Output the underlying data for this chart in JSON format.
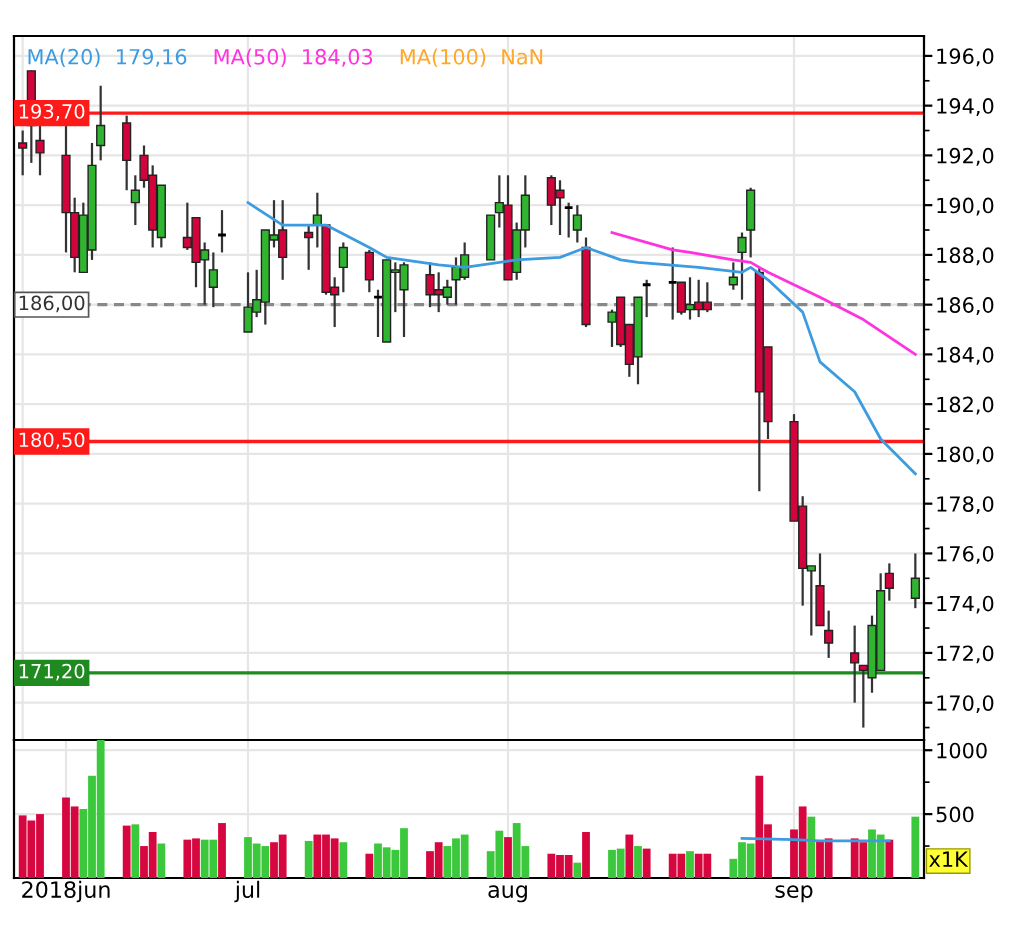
{
  "chart_data": [
    {
      "type": "candlestick",
      "x": [
        "2018-06-06",
        "2018-06-07",
        "2018-06-08",
        "2018-06-11",
        "2018-06-12",
        "2018-06-13",
        "2018-06-14",
        "2018-06-15",
        "2018-06-18",
        "2018-06-19",
        "2018-06-20",
        "2018-06-21",
        "2018-06-22",
        "2018-06-25",
        "2018-06-26",
        "2018-06-27",
        "2018-06-28",
        "2018-06-29",
        "2018-07-02",
        "2018-07-03",
        "2018-07-04",
        "2018-07-05",
        "2018-07-06",
        "2018-07-09",
        "2018-07-10",
        "2018-07-11",
        "2018-07-12",
        "2018-07-13",
        "2018-07-16",
        "2018-07-17",
        "2018-07-18",
        "2018-07-19",
        "2018-07-20",
        "2018-07-23",
        "2018-07-24",
        "2018-07-25",
        "2018-07-26",
        "2018-07-27",
        "2018-07-30",
        "2018-07-31",
        "2018-08-01",
        "2018-08-02",
        "2018-08-03",
        "2018-08-06",
        "2018-08-07",
        "2018-08-08",
        "2018-08-09",
        "2018-08-10",
        "2018-08-13",
        "2018-08-14",
        "2018-08-15",
        "2018-08-16",
        "2018-08-17",
        "2018-08-20",
        "2018-08-21",
        "2018-08-22",
        "2018-08-23",
        "2018-08-24",
        "2018-08-27",
        "2018-08-28",
        "2018-08-29",
        "2018-08-30",
        "2018-08-31",
        "2018-09-03",
        "2018-09-04",
        "2018-09-05",
        "2018-09-06",
        "2018-09-07",
        "2018-09-10",
        "2018-09-11",
        "2018-09-12",
        "2018-09-13",
        "2018-09-14",
        "2018-09-17"
      ],
      "ohlc": [
        [
          192.5,
          193.0,
          191.2,
          192.3
        ],
        [
          195.4,
          195.4,
          191.7,
          193.2
        ],
        [
          192.6,
          193.2,
          191.2,
          192.1
        ],
        [
          192.0,
          193.2,
          188.1,
          189.7
        ],
        [
          189.7,
          190.3,
          187.3,
          187.9
        ],
        [
          187.3,
          190.1,
          187.3,
          189.6
        ],
        [
          188.2,
          192.5,
          187.8,
          191.6
        ],
        [
          192.4,
          194.8,
          191.8,
          193.2
        ],
        [
          193.3,
          193.6,
          190.6,
          191.8
        ],
        [
          190.1,
          191.2,
          189.2,
          190.6
        ],
        [
          192.0,
          192.4,
          190.7,
          191.0
        ],
        [
          191.2,
          191.6,
          188.3,
          189.0
        ],
        [
          188.7,
          190.8,
          188.3,
          190.8
        ],
        [
          188.7,
          190.1,
          188.2,
          188.3
        ],
        [
          189.5,
          189.5,
          186.7,
          187.7
        ],
        [
          187.8,
          188.5,
          186.0,
          188.2
        ],
        [
          186.7,
          188.1,
          185.9,
          187.4
        ],
        [
          188.8,
          189.8,
          188.1,
          188.8
        ],
        [
          184.9,
          187.3,
          184.9,
          185.9
        ],
        [
          185.7,
          187.4,
          185.5,
          186.2
        ],
        [
          186.1,
          189.0,
          185.2,
          189.0
        ],
        [
          188.6,
          190.2,
          188.3,
          188.8
        ],
        [
          189.0,
          190.2,
          187.0,
          187.9
        ],
        [
          188.9,
          189.2,
          187.4,
          188.7
        ],
        [
          189.2,
          190.5,
          188.3,
          189.6
        ],
        [
          189.2,
          189.2,
          186.4,
          186.5
        ],
        [
          186.7,
          187.1,
          185.1,
          186.4
        ],
        [
          187.5,
          188.5,
          186.5,
          188.3
        ],
        [
          188.1,
          188.2,
          186.5,
          187.0
        ],
        [
          186.3,
          186.6,
          184.7,
          186.3
        ],
        [
          184.5,
          187.8,
          184.5,
          187.8
        ],
        [
          187.3,
          187.7,
          185.7,
          187.4
        ],
        [
          186.6,
          187.7,
          184.7,
          187.6
        ],
        [
          187.2,
          187.7,
          185.9,
          186.4
        ],
        [
          186.6,
          187.3,
          185.7,
          186.4
        ],
        [
          186.3,
          187.0,
          186.0,
          186.7
        ],
        [
          187.0,
          187.9,
          186.0,
          187.5
        ],
        [
          187.1,
          188.5,
          187.0,
          188.0
        ],
        [
          187.8,
          189.6,
          187.8,
          189.6
        ],
        [
          189.7,
          191.2,
          189.1,
          190.1
        ],
        [
          190.0,
          191.2,
          187.0,
          187.0
        ],
        [
          187.3,
          189.3,
          187.0,
          189.0
        ],
        [
          189.0,
          191.2,
          188.3,
          190.4
        ],
        [
          191.1,
          191.2,
          189.2,
          190.0
        ],
        [
          190.6,
          191.0,
          188.8,
          190.3
        ],
        [
          189.9,
          190.1,
          188.7,
          189.9
        ],
        [
          189.0,
          190.0,
          188.5,
          189.6
        ],
        [
          188.3,
          188.7,
          185.1,
          185.2
        ],
        [
          185.3,
          185.8,
          184.3,
          185.7
        ],
        [
          186.3,
          186.3,
          184.3,
          184.4
        ],
        [
          185.2,
          185.2,
          183.1,
          183.6
        ],
        [
          183.9,
          186.3,
          182.8,
          186.3
        ],
        [
          186.8,
          187.0,
          185.5,
          186.8
        ],
        [
          186.9,
          188.3,
          185.4,
          186.9
        ],
        [
          186.9,
          186.9,
          185.6,
          185.7
        ],
        [
          185.8,
          187.1,
          185.4,
          186.0
        ],
        [
          186.1,
          187.0,
          185.5,
          185.8
        ],
        [
          186.1,
          186.9,
          185.7,
          185.8
        ],
        [
          186.8,
          187.7,
          186.6,
          187.1
        ],
        [
          188.1,
          188.9,
          186.2,
          188.7
        ],
        [
          189.0,
          190.7,
          187.9,
          190.6
        ],
        [
          187.3,
          187.5,
          178.5,
          182.5
        ],
        [
          184.3,
          184.3,
          180.6,
          181.3
        ],
        [
          181.3,
          181.6,
          177.3,
          177.3
        ],
        [
          177.9,
          178.3,
          173.9,
          175.4
        ],
        [
          175.3,
          175.5,
          172.7,
          175.5
        ],
        [
          174.7,
          176.0,
          173.1,
          173.1
        ],
        [
          172.9,
          173.7,
          171.8,
          172.4
        ],
        [
          172.0,
          173.1,
          170.0,
          171.6
        ],
        [
          171.5,
          171.5,
          169.0,
          171.3
        ],
        [
          171.0,
          173.5,
          170.4,
          173.1
        ],
        [
          171.3,
          175.2,
          171.3,
          174.5
        ],
        [
          175.2,
          175.6,
          174.1,
          174.6
        ],
        [
          174.2,
          176.0,
          173.8,
          175.0
        ]
      ],
      "colors": [
        "#d2043c",
        "#d2043c",
        "#d2043c",
        "#d2043c",
        "#d2043c",
        "#2fb52f",
        "#2fb52f",
        "#2fb52f",
        "#d2043c",
        "#2fb52f",
        "#d2043c",
        "#d2043c",
        "#2fb52f",
        "#d2043c",
        "#d2043c",
        "#2fb52f",
        "#2fb52f",
        "#000000",
        "#2fb52f",
        "#2fb52f",
        "#2fb52f",
        "#2fb52f",
        "#d2043c",
        "#d2043c",
        "#2fb52f",
        "#d2043c",
        "#d2043c",
        "#2fb52f",
        "#d2043c",
        "#000000",
        "#2fb52f",
        "#2fb52f",
        "#2fb52f",
        "#d2043c",
        "#d2043c",
        "#2fb52f",
        "#2fb52f",
        "#2fb52f",
        "#2fb52f",
        "#2fb52f",
        "#d2043c",
        "#2fb52f",
        "#2fb52f",
        "#d2043c",
        "#d2043c",
        "#000000",
        "#2fb52f",
        "#d2043c",
        "#2fb52f",
        "#d2043c",
        "#d2043c",
        "#2fb52f",
        "#000000",
        "#000000",
        "#d2043c",
        "#2fb52f",
        "#d2043c",
        "#d2043c",
        "#2fb52f",
        "#2fb52f",
        "#2fb52f",
        "#d2043c",
        "#d2043c",
        "#d2043c",
        "#d2043c",
        "#2fb52f",
        "#d2043c",
        "#d2043c",
        "#d2043c",
        "#d2043c",
        "#2fb52f",
        "#2fb52f",
        "#d2043c",
        "#2fb52f"
      ],
      "series": [
        {
          "type": "line",
          "name": "MA(20)  179,16",
          "color": "#3d9be0",
          "x": [
            "2018-07-02",
            "2018-07-06",
            "2018-07-11",
            "2018-07-16",
            "2018-07-18",
            "2018-07-24",
            "2018-07-27",
            "2018-08-02",
            "2018-08-07",
            "2018-08-10",
            "2018-08-14",
            "2018-08-16",
            "2018-08-23",
            "2018-08-28",
            "2018-08-29",
            "2018-08-31",
            "2018-09-04",
            "2018-09-06",
            "2018-09-10",
            "2018-09-13",
            "2018-09-17"
          ],
          "values": [
            190.1,
            189.2,
            189.2,
            188.3,
            187.9,
            187.6,
            187.5,
            187.8,
            187.9,
            188.3,
            187.8,
            187.7,
            187.5,
            187.3,
            187.5,
            187.0,
            185.7,
            183.7,
            182.5,
            180.6,
            179.2
          ]
        },
        {
          "type": "line",
          "name": "MA(50)  184,03",
          "color": "#ff33dd",
          "x": [
            "2018-08-13",
            "2018-08-20",
            "2018-08-22",
            "2018-08-27",
            "2018-08-29",
            "2018-08-31",
            "2018-09-06",
            "2018-09-11",
            "2018-09-17"
          ],
          "values": [
            188.9,
            188.2,
            188.1,
            187.8,
            187.7,
            187.3,
            186.3,
            185.4,
            184.0
          ]
        },
        {
          "type": "line",
          "name": "MA(100)  NaN",
          "color": "#ffa726",
          "values": [
            null,
            null,
            null,
            null,
            null,
            null,
            null,
            null,
            null,
            null,
            null,
            null,
            null,
            null,
            null,
            null,
            null,
            null,
            null,
            null,
            null,
            null,
            null,
            null,
            null,
            null,
            null,
            null,
            null,
            null,
            null,
            null,
            null,
            null,
            null,
            null,
            null,
            null,
            null,
            null,
            null,
            null,
            null,
            null,
            null,
            null,
            null,
            null,
            null,
            null,
            null,
            null,
            null,
            null,
            null,
            null,
            null,
            null,
            null,
            null,
            null,
            null,
            null,
            null,
            null,
            null,
            null,
            null,
            null,
            null,
            null,
            null,
            null,
            null
          ]
        }
      ],
      "ref_lines": [
        {
          "axis": "y",
          "value": 193.7,
          "label": "193,70",
          "color": "#ff1a1a",
          "line_style": "solid"
        },
        {
          "axis": "y",
          "value": 186.0,
          "label": "186,00",
          "color": "#888888",
          "line_style": "dashed"
        },
        {
          "axis": "y",
          "value": 180.5,
          "label": "180,50",
          "color": "#ff1a1a",
          "line_style": "solid"
        },
        {
          "axis": "y",
          "value": 171.2,
          "label": "171,20",
          "color": "#1f8a1f",
          "line_style": "solid"
        }
      ],
      "xlim": [
        "2018-06-05",
        "2018-09-18"
      ],
      "ylim": [
        168.5,
        196.8
      ],
      "yticks": [
        {
          "value": 170,
          "label": "170,0"
        },
        {
          "value": 172,
          "label": "172,0"
        },
        {
          "value": 174,
          "label": "174,0"
        },
        {
          "value": 176,
          "label": "176,0"
        },
        {
          "value": 178,
          "label": "178,0"
        },
        {
          "value": 180,
          "label": "180,0"
        },
        {
          "value": 182,
          "label": "182,0"
        },
        {
          "value": 184,
          "label": "184,0"
        },
        {
          "value": 186,
          "label": "186,0"
        },
        {
          "value": 188,
          "label": "188,0"
        },
        {
          "value": 190,
          "label": "190,0"
        },
        {
          "value": 192,
          "label": "192,0"
        },
        {
          "value": 194,
          "label": "194,0"
        },
        {
          "value": 196,
          "label": "196,0"
        }
      ],
      "xticks": [
        {
          "value": "2018-06-06",
          "label": null
        },
        {
          "value": "2018-07-02",
          "label": null
        },
        {
          "value": "2018-08-01",
          "label": null
        },
        {
          "value": "2018-09-03",
          "label": null
        }
      ],
      "tick_labels": "y",
      "grid": true,
      "legend": "top left"
    },
    {
      "type": "bar",
      "x": [
        "2018-06-06",
        "2018-06-07",
        "2018-06-08",
        "2018-06-11",
        "2018-06-12",
        "2018-06-13",
        "2018-06-14",
        "2018-06-15",
        "2018-06-18",
        "2018-06-19",
        "2018-06-20",
        "2018-06-21",
        "2018-06-22",
        "2018-06-25",
        "2018-06-26",
        "2018-06-27",
        "2018-06-28",
        "2018-06-29",
        "2018-07-02",
        "2018-07-03",
        "2018-07-04",
        "2018-07-05",
        "2018-07-06",
        "2018-07-09",
        "2018-07-10",
        "2018-07-11",
        "2018-07-12",
        "2018-07-13",
        "2018-07-16",
        "2018-07-17",
        "2018-07-18",
        "2018-07-19",
        "2018-07-20",
        "2018-07-23",
        "2018-07-24",
        "2018-07-25",
        "2018-07-26",
        "2018-07-27",
        "2018-07-30",
        "2018-07-31",
        "2018-08-01",
        "2018-08-02",
        "2018-08-03",
        "2018-08-06",
        "2018-08-07",
        "2018-08-08",
        "2018-08-09",
        "2018-08-10",
        "2018-08-13",
        "2018-08-14",
        "2018-08-15",
        "2018-08-16",
        "2018-08-17",
        "2018-08-20",
        "2018-08-21",
        "2018-08-22",
        "2018-08-23",
        "2018-08-24",
        "2018-08-27",
        "2018-08-28",
        "2018-08-29",
        "2018-08-30",
        "2018-08-31",
        "2018-09-03",
        "2018-09-04",
        "2018-09-05",
        "2018-09-06",
        "2018-09-07",
        "2018-09-10",
        "2018-09-11",
        "2018-09-12",
        "2018-09-13",
        "2018-09-14",
        "2018-09-17"
      ],
      "values": [
        490,
        450,
        500,
        630,
        560,
        540,
        800,
        1080,
        410,
        420,
        250,
        360,
        270,
        300,
        310,
        300,
        300,
        430,
        320,
        270,
        250,
        280,
        340,
        290,
        340,
        340,
        310,
        280,
        190,
        270,
        240,
        220,
        390,
        210,
        280,
        250,
        310,
        340,
        210,
        370,
        320,
        430,
        250,
        190,
        180,
        180,
        120,
        360,
        220,
        230,
        340,
        250,
        230,
        190,
        190,
        210,
        190,
        190,
        150,
        280,
        270,
        800,
        420,
        380,
        560,
        480,
        290,
        310,
        310,
        280,
        380,
        340,
        300,
        480
      ],
      "colors": [
        "#d6063f",
        "#d6063f",
        "#d6063f",
        "#d6063f",
        "#d6063f",
        "#3cc83c",
        "#3cc83c",
        "#3cc83c",
        "#d6063f",
        "#3cc83c",
        "#d6063f",
        "#d6063f",
        "#3cc83c",
        "#d6063f",
        "#d6063f",
        "#3cc83c",
        "#3cc83c",
        "#d6063f",
        "#3cc83c",
        "#3cc83c",
        "#3cc83c",
        "#d6063f",
        "#d6063f",
        "#3cc83c",
        "#d6063f",
        "#d6063f",
        "#d6063f",
        "#3cc83c",
        "#d6063f",
        "#3cc83c",
        "#3cc83c",
        "#3cc83c",
        "#3cc83c",
        "#d6063f",
        "#d6063f",
        "#3cc83c",
        "#3cc83c",
        "#3cc83c",
        "#3cc83c",
        "#3cc83c",
        "#d6063f",
        "#3cc83c",
        "#3cc83c",
        "#d6063f",
        "#d6063f",
        "#d6063f",
        "#3cc83c",
        "#d6063f",
        "#3cc83c",
        "#3cc83c",
        "#d6063f",
        "#3cc83c",
        "#d6063f",
        "#d6063f",
        "#d6063f",
        "#3cc83c",
        "#d6063f",
        "#d6063f",
        "#3cc83c",
        "#3cc83c",
        "#3cc83c",
        "#d6063f",
        "#d6063f",
        "#d6063f",
        "#d6063f",
        "#3cc83c",
        "#d6063f",
        "#d6063f",
        "#d6063f",
        "#d6063f",
        "#3cc83c",
        "#3cc83c",
        "#d6063f",
        "#3cc83c"
      ],
      "series": [
        {
          "type": "line",
          "color": "#3d9be0",
          "x": [
            "2018-08-28",
            "2018-09-03",
            "2018-09-06",
            "2018-09-14"
          ],
          "values": [
            310,
            300,
            290,
            290
          ]
        }
      ],
      "xlim": [
        "2018-06-05",
        "2018-09-18"
      ],
      "ylim": [
        0,
        1080
      ],
      "yticks": [
        500,
        1000
      ],
      "xticks": [
        {
          "value": "2018-06-11",
          "label": "2018jun"
        },
        {
          "value": "2018-07-02",
          "label": "jul"
        },
        {
          "value": "2018-08-01",
          "label": "aug"
        },
        {
          "value": "2018-09-03",
          "label": "sep"
        }
      ],
      "grid": true,
      "annotations": [
        "x1K"
      ]
    }
  ]
}
